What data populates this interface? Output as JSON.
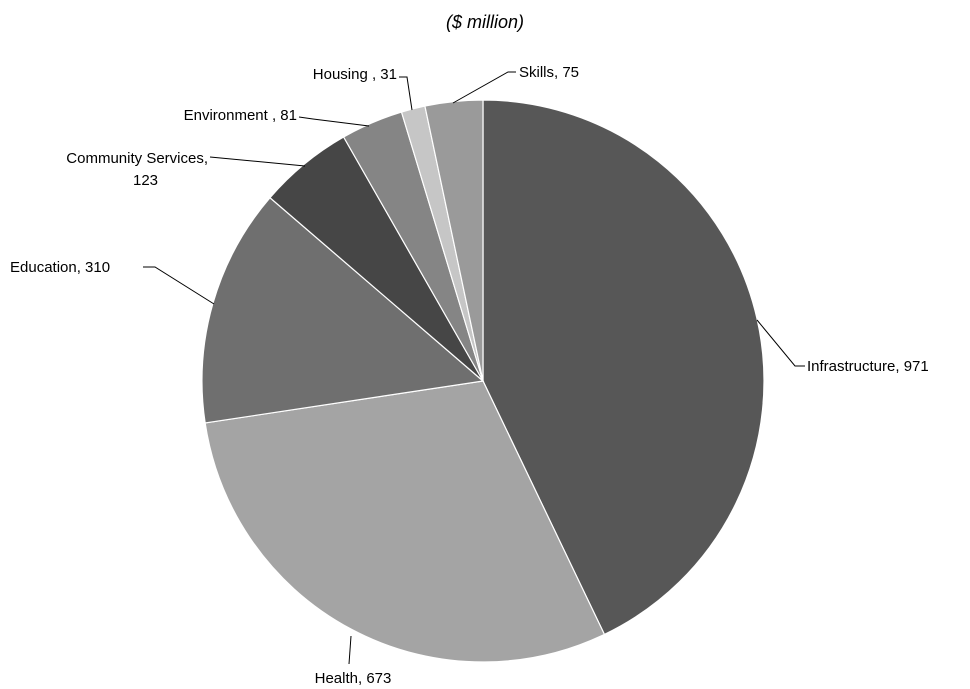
{
  "chart_data": {
    "type": "pie",
    "title": "($ million)",
    "slices": [
      {
        "label": "Infrastructure, 971",
        "category": "Infrastructure",
        "value": 971,
        "color": "#575757"
      },
      {
        "label": "Health, 673",
        "category": "Health",
        "value": 673,
        "color": "#a4a4a4"
      },
      {
        "label": "Education, 310",
        "category": "Education",
        "value": 310,
        "color": "#6f6f6f"
      },
      {
        "label": "Community Services, 123",
        "category": "Community Services",
        "value": 123,
        "color": "#464646"
      },
      {
        "label": "Environment , 81",
        "category": "Environment",
        "value": 81,
        "color": "#858585"
      },
      {
        "label": "Housing , 31",
        "category": "Housing",
        "value": 31,
        "color": "#c6c6c6"
      },
      {
        "label": "Skills, 75",
        "category": "Skills",
        "value": 75,
        "color": "#9a9a9a"
      }
    ],
    "legend": "none"
  }
}
